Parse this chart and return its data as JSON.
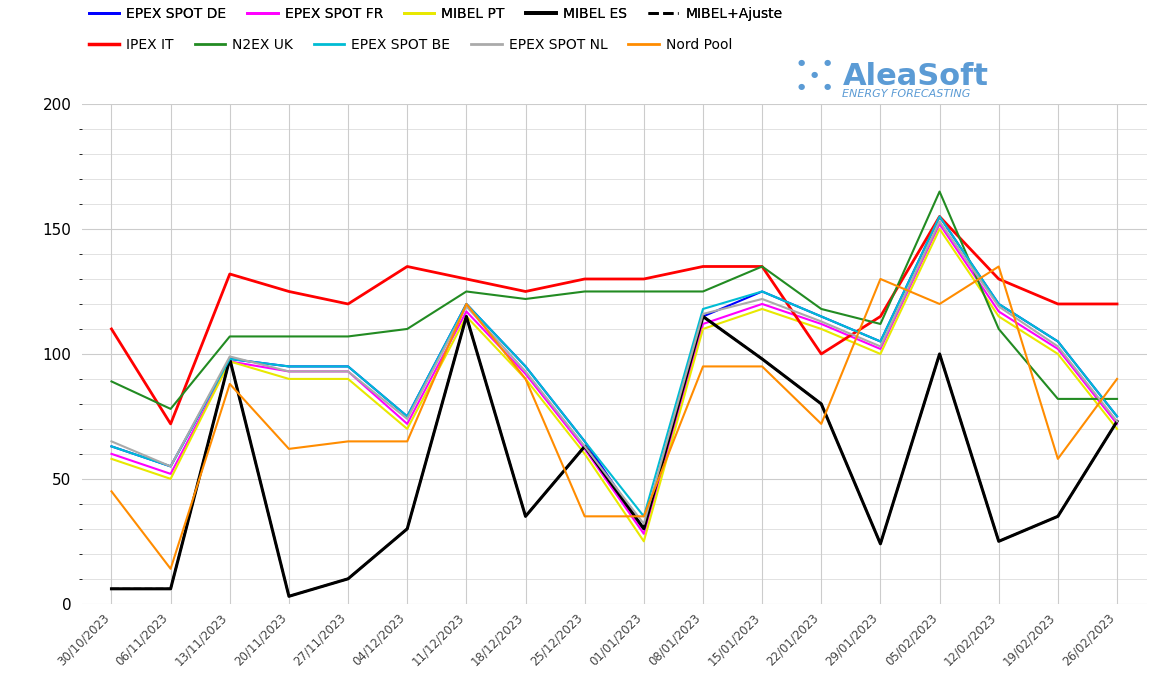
{
  "x_labels": [
    "30/10\n/2023",
    "06/11\n/2023",
    "13/11\n/2023",
    "20/11\n/2023",
    "27/11\n/2023",
    "04/12\n/2023",
    "11/12\n/2023",
    "18/12\n/2023",
    "25/12\n/2023",
    "01/01\n/2023",
    "08/01\n/2023",
    "15/01\n/2023",
    "22/01\n/2023",
    "29/01\n/2023",
    "05/02\n/2023",
    "12/02\n/2023",
    "19/02\n/2023",
    "26/02\n/2023"
  ],
  "x_labels_display": [
    "30/10/2023",
    "06/11/2023",
    "13/11/2023",
    "20/11/2023",
    "27/11/2023",
    "04/12/2023",
    "11/12/2023",
    "18/12/2023",
    "25/12/2023",
    "01/01/2023",
    "08/01/2023",
    "15/01/2023",
    "22/01/2023",
    "29/01/2023",
    "05/02/2023",
    "12/02/2023",
    "19/02/2023",
    "26/02/2023"
  ],
  "series": {
    "EPEX SPOT DE": {
      "color": "#0000ff",
      "linestyle": "-",
      "linewidth": 1.5,
      "values": [
        63,
        55,
        98,
        95,
        95,
        75,
        120,
        95,
        65,
        30,
        115,
        125,
        115,
        105,
        155,
        120,
        105,
        75
      ]
    },
    "EPEX SPOT FR": {
      "color": "#ff00ff",
      "linestyle": "-",
      "linewidth": 1.5,
      "values": [
        60,
        52,
        97,
        93,
        93,
        72,
        117,
        92,
        62,
        28,
        112,
        120,
        112,
        102,
        152,
        117,
        102,
        72
      ]
    },
    "MIBEL PT": {
      "color": "#e8e800",
      "linestyle": "-",
      "linewidth": 1.5,
      "values": [
        58,
        50,
        97,
        90,
        90,
        70,
        115,
        90,
        60,
        25,
        110,
        118,
        110,
        100,
        150,
        115,
        100,
        70
      ]
    },
    "MIBEL ES": {
      "color": "#000000",
      "linestyle": "-",
      "linewidth": 2.2,
      "values": [
        6,
        6,
        98,
        3,
        10,
        30,
        115,
        35,
        63,
        30,
        115,
        98,
        80,
        24,
        100,
        25,
        35,
        73
      ]
    },
    "MIBEL+Ajuste": {
      "color": "#000000",
      "linestyle": "--",
      "linewidth": 1.5,
      "values": [
        6,
        6,
        98,
        3,
        10,
        30,
        115,
        35,
        63,
        30,
        115,
        98,
        80,
        24,
        100,
        25,
        35,
        73
      ]
    },
    "IPEX IT": {
      "color": "#ff0000",
      "linestyle": "-",
      "linewidth": 2.0,
      "values": [
        110,
        72,
        132,
        125,
        120,
        135,
        130,
        125,
        130,
        130,
        135,
        135,
        100,
        115,
        155,
        130,
        120,
        120
      ]
    },
    "N2EX UK": {
      "color": "#228b22",
      "linestyle": "-",
      "linewidth": 1.5,
      "values": [
        89,
        78,
        107,
        107,
        107,
        110,
        125,
        122,
        125,
        125,
        125,
        135,
        118,
        112,
        165,
        110,
        82,
        82
      ]
    },
    "EPEX SPOT BE": {
      "color": "#00bcd4",
      "linestyle": "-",
      "linewidth": 1.5,
      "values": [
        63,
        55,
        98,
        95,
        95,
        75,
        120,
        95,
        65,
        35,
        118,
        125,
        115,
        105,
        155,
        120,
        105,
        75
      ]
    },
    "EPEX SPOT NL": {
      "color": "#aaaaaa",
      "linestyle": "-",
      "linewidth": 1.5,
      "values": [
        65,
        55,
        99,
        93,
        93,
        74,
        119,
        93,
        63,
        32,
        116,
        122,
        113,
        103,
        153,
        119,
        103,
        73
      ]
    },
    "Nord Pool": {
      "color": "#ff8c00",
      "linestyle": "-",
      "linewidth": 1.5,
      "values": [
        45,
        14,
        88,
        62,
        65,
        65,
        120,
        90,
        35,
        35,
        95,
        95,
        72,
        130,
        120,
        135,
        58,
        90
      ]
    }
  },
  "ylim": [
    0,
    200
  ],
  "yticks": [
    0,
    50,
    100,
    150,
    200
  ],
  "background_color": "#ffffff",
  "grid_color": "#cccccc",
  "legend_row1": [
    "EPEX SPOT DE",
    "EPEX SPOT FR",
    "MIBEL PT",
    "MIBEL ES",
    "MIBEL+Ajuste"
  ],
  "legend_row2": [
    "IPEX IT",
    "N2EX UK",
    "EPEX SPOT BE",
    "EPEX SPOT NL",
    "Nord Pool"
  ],
  "logo_color": "#5b9bd5",
  "logo_dot_color": "#5b9bd5"
}
